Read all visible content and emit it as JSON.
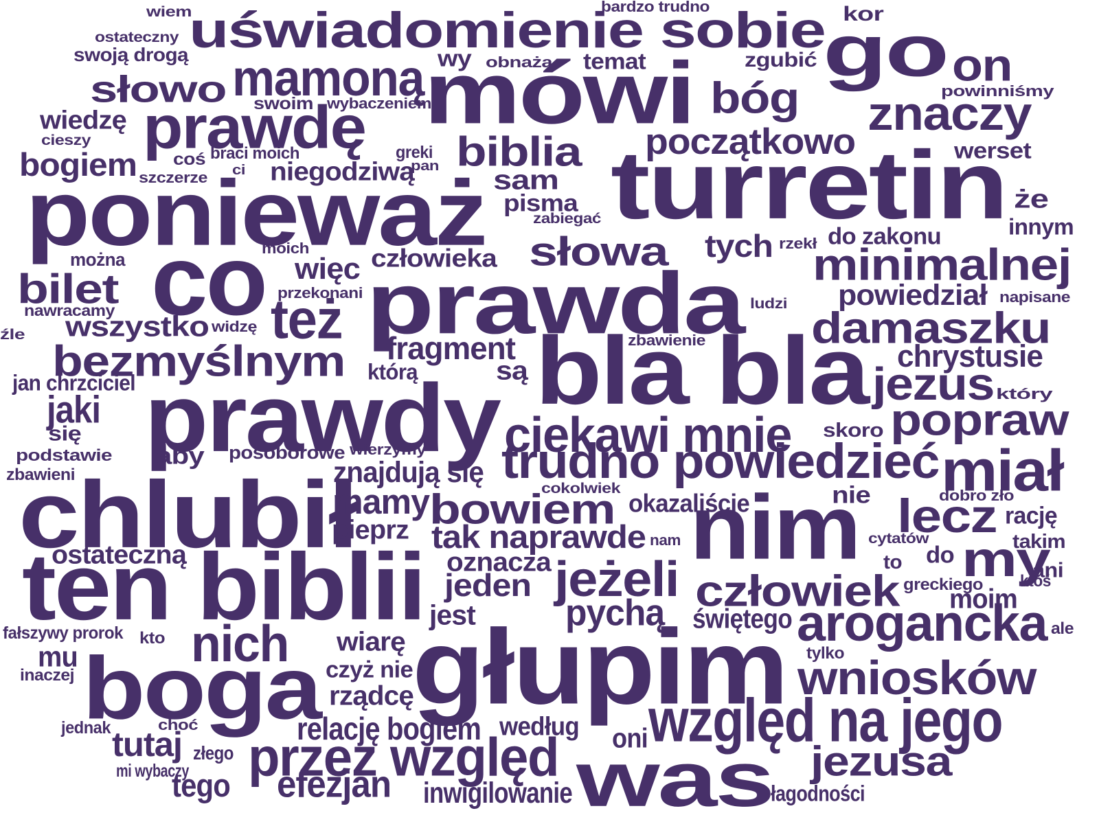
{
  "cloud": {
    "text_color": "#473069",
    "background": "#ffffff",
    "words": [
      "wiem",
      "ostateczny",
      "swoją drogą",
      "uświadomienie sobie",
      "bardzo trudno",
      "kor",
      "go",
      "mamoną",
      "wy",
      "obnaża",
      "temat",
      "zgubić",
      "on",
      "słowo",
      "mówi",
      "powinniśmy",
      "bóg",
      "swoim",
      "wybaczeniem",
      "prawdę",
      "znaczy",
      "wiedzę",
      "cieszy",
      "biblia",
      "początkowo",
      "bogiem",
      "coś",
      "braci moich",
      "greki",
      "werset",
      "ci",
      "pan",
      "niegodziwą",
      "szczerze",
      "turretin",
      "sam",
      "ponieważ",
      "pisma",
      "że",
      "zabiegać",
      "innym",
      "słowa",
      "tych",
      "do zakonu",
      "rzekł",
      "moich",
      "co",
      "minimalnej",
      "można",
      "więc",
      "człowieka",
      "bilet",
      "prawda",
      "przekonani",
      "powiedział",
      "napisane",
      "ludzi",
      "nawracamy",
      "też",
      "damaszku",
      "wszystko",
      "widzę",
      "źle",
      "zbawienie",
      "fragment",
      "bezmyślnym",
      "chrystusie",
      "bla bla",
      "którą",
      "są",
      "jan chrzciciel",
      "jezus",
      "który",
      "prawdy",
      "jaki",
      "popraw",
      "ciekawi mnie",
      "skoro",
      "się",
      "podstawie",
      "posoborowe",
      "wierzymy",
      "aby",
      "trudno powiedzieć",
      "miał",
      "zbawieni",
      "znajdują się",
      "chlubił",
      "cokolwiek",
      "dobro zło",
      "nie",
      "okazaliście",
      "mamy",
      "bowiem",
      "lecz",
      "rację",
      "pieprz",
      "nim",
      "takim",
      "tak naprawde",
      "cytatów",
      "nam",
      "ostateczną",
      "do",
      "my",
      "oznacza",
      "to",
      "ani",
      "jeżeli",
      "ktoś",
      "greckiego",
      "ten biblii",
      "jeden",
      "człowiek",
      "moim",
      "pychą",
      "jest",
      "świętego",
      "arogancka",
      "ale",
      "fałszywy prorok",
      "kto",
      "nich",
      "wiarę",
      "mu",
      "głupim",
      "tylko",
      "inaczej",
      "czyż nie",
      "boga",
      "wniosków",
      "rządcę",
      "jednak",
      "choć",
      "relację bogiem",
      "według",
      "względ na jego",
      "tutaj",
      "oni",
      "złego",
      "mi wybaczy",
      "przez względ",
      "was",
      "jezusa",
      "tego",
      "efezjan",
      "inwigilowanie",
      "łagodności"
    ]
  }
}
